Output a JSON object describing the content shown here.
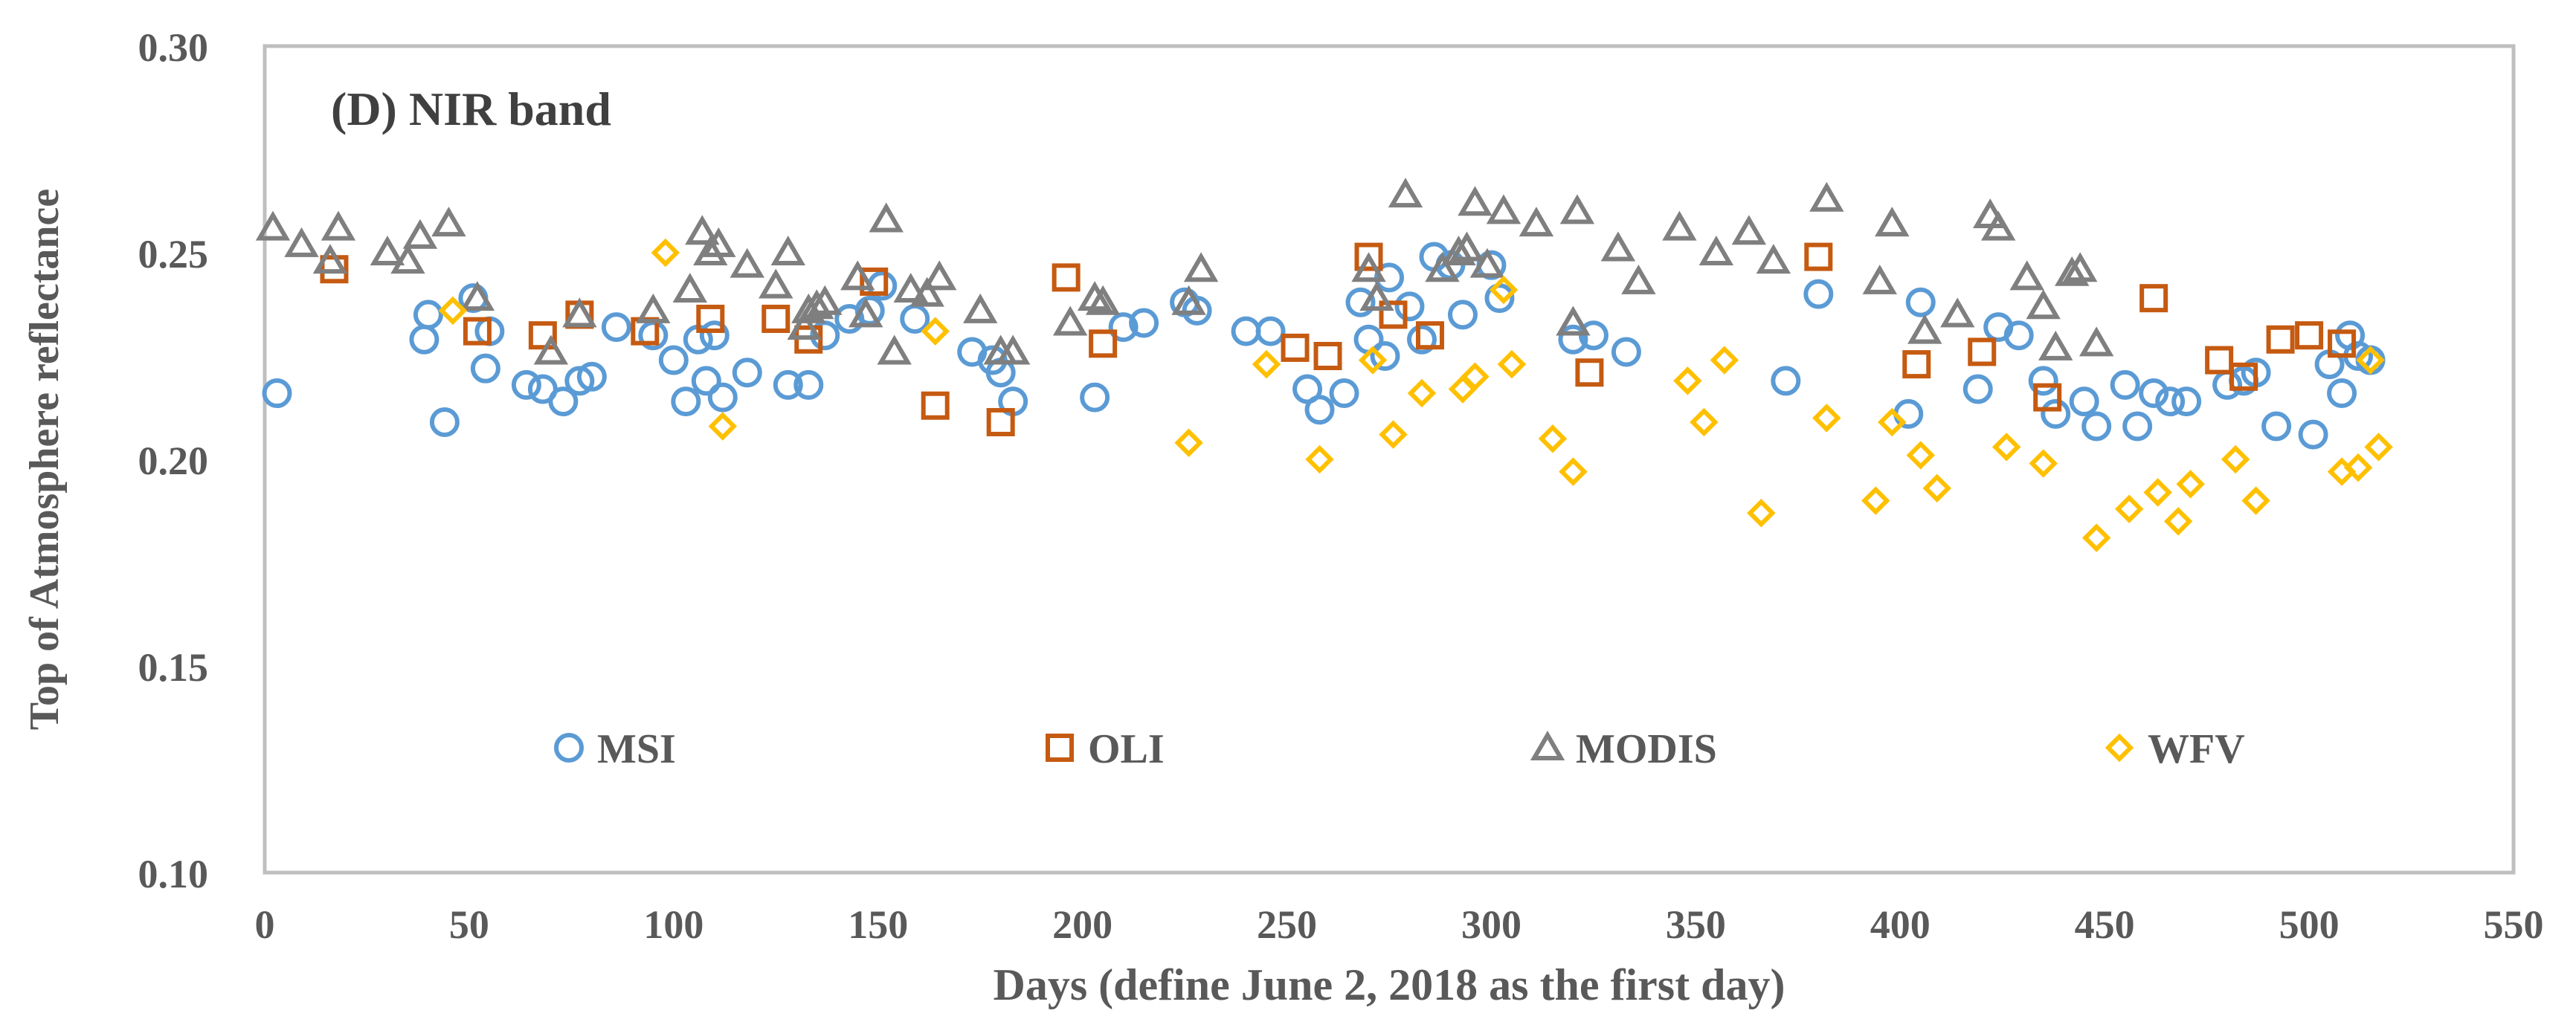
{
  "chart_data": {
    "type": "scatter",
    "title": "(D) NIR band",
    "xlabel": "Days  (define June 2, 2018 as the first day)",
    "ylabel": "Top of Atmosphere reflectance",
    "xlim": [
      0,
      550
    ],
    "ylim": [
      0.1,
      0.3
    ],
    "xticks": [
      0,
      50,
      100,
      150,
      200,
      250,
      300,
      350,
      400,
      450,
      500,
      550
    ],
    "yticks": [
      0.1,
      0.15,
      0.2,
      0.25,
      0.3
    ],
    "xtick_labels": [
      "0",
      "50",
      "100",
      "150",
      "200",
      "250",
      "300",
      "350",
      "400",
      "450",
      "500",
      "550"
    ],
    "ytick_labels": [
      "0.10",
      "0.15",
      "0.20",
      "0.25",
      "0.30"
    ],
    "grid": false,
    "legend_position": "inside-lower",
    "series": [
      {
        "name": "MSI",
        "marker": "circle",
        "color": "#5B9BD5",
        "points": [
          [
            3,
            0.216
          ],
          [
            39,
            0.229
          ],
          [
            40,
            0.235
          ],
          [
            44,
            0.209
          ],
          [
            51,
            0.239
          ],
          [
            54,
            0.222
          ],
          [
            55,
            0.231
          ],
          [
            64,
            0.218
          ],
          [
            68,
            0.217
          ],
          [
            73,
            0.214
          ],
          [
            77,
            0.219
          ],
          [
            80,
            0.22
          ],
          [
            86,
            0.232
          ],
          [
            95,
            0.23
          ],
          [
            100,
            0.224
          ],
          [
            103,
            0.214
          ],
          [
            106,
            0.229
          ],
          [
            108,
            0.219
          ],
          [
            110,
            0.23
          ],
          [
            112,
            0.215
          ],
          [
            118,
            0.221
          ],
          [
            128,
            0.218
          ],
          [
            133,
            0.218
          ],
          [
            137,
            0.23
          ],
          [
            143,
            0.234
          ],
          [
            148,
            0.236
          ],
          [
            151,
            0.242
          ],
          [
            159,
            0.234
          ],
          [
            173,
            0.226
          ],
          [
            178,
            0.224
          ],
          [
            180,
            0.221
          ],
          [
            183,
            0.214
          ],
          [
            203,
            0.215
          ],
          [
            210,
            0.232
          ],
          [
            215,
            0.233
          ],
          [
            225,
            0.238
          ],
          [
            228,
            0.236
          ],
          [
            240,
            0.231
          ],
          [
            246,
            0.231
          ],
          [
            255,
            0.217
          ],
          [
            258,
            0.212
          ],
          [
            264,
            0.216
          ],
          [
            268,
            0.238
          ],
          [
            270,
            0.229
          ],
          [
            274,
            0.225
          ],
          [
            275,
            0.244
          ],
          [
            280,
            0.237
          ],
          [
            283,
            0.229
          ],
          [
            286,
            0.249
          ],
          [
            290,
            0.247
          ],
          [
            293,
            0.235
          ],
          [
            300,
            0.247
          ],
          [
            302,
            0.239
          ],
          [
            320,
            0.229
          ],
          [
            325,
            0.23
          ],
          [
            333,
            0.226
          ],
          [
            372,
            0.219
          ],
          [
            380,
            0.24
          ],
          [
            402,
            0.211
          ],
          [
            405,
            0.238
          ],
          [
            419,
            0.217
          ],
          [
            424,
            0.232
          ],
          [
            429,
            0.23
          ],
          [
            435,
            0.219
          ],
          [
            438,
            0.211
          ],
          [
            445,
            0.214
          ],
          [
            448,
            0.208
          ],
          [
            455,
            0.218
          ],
          [
            458,
            0.208
          ],
          [
            462,
            0.216
          ],
          [
            466,
            0.214
          ],
          [
            470,
            0.214
          ],
          [
            480,
            0.218
          ],
          [
            484,
            0.219
          ],
          [
            487,
            0.221
          ],
          [
            492,
            0.208
          ],
          [
            501,
            0.206
          ],
          [
            505,
            0.223
          ],
          [
            508,
            0.216
          ],
          [
            510,
            0.23
          ],
          [
            512,
            0.225
          ],
          [
            515,
            0.224
          ]
        ]
      },
      {
        "name": "OLI",
        "marker": "square",
        "color": "#C55A11",
        "points": [
          [
            17,
            0.246
          ],
          [
            52,
            0.231
          ],
          [
            68,
            0.23
          ],
          [
            77,
            0.235
          ],
          [
            93,
            0.231
          ],
          [
            109,
            0.234
          ],
          [
            125,
            0.234
          ],
          [
            133,
            0.229
          ],
          [
            149,
            0.243
          ],
          [
            164,
            0.213
          ],
          [
            180,
            0.209
          ],
          [
            196,
            0.244
          ],
          [
            205,
            0.228
          ],
          [
            252,
            0.227
          ],
          [
            260,
            0.225
          ],
          [
            270,
            0.249
          ],
          [
            276,
            0.235
          ],
          [
            285,
            0.23
          ],
          [
            324,
            0.221
          ],
          [
            380,
            0.249
          ],
          [
            404,
            0.223
          ],
          [
            420,
            0.226
          ],
          [
            436,
            0.215
          ],
          [
            462,
            0.239
          ],
          [
            478,
            0.224
          ],
          [
            484,
            0.22
          ],
          [
            493,
            0.229
          ],
          [
            500,
            0.23
          ],
          [
            508,
            0.228
          ]
        ]
      },
      {
        "name": "MODIS",
        "marker": "triangle",
        "color": "#7F7F7F",
        "points": [
          [
            2,
            0.256
          ],
          [
            9,
            0.252
          ],
          [
            16,
            0.248
          ],
          [
            18,
            0.256
          ],
          [
            30,
            0.25
          ],
          [
            35,
            0.248
          ],
          [
            38,
            0.254
          ],
          [
            45,
            0.257
          ],
          [
            52,
            0.239
          ],
          [
            70,
            0.226
          ],
          [
            77,
            0.235
          ],
          [
            95,
            0.236
          ],
          [
            104,
            0.241
          ],
          [
            107,
            0.255
          ],
          [
            109,
            0.25
          ],
          [
            111,
            0.252
          ],
          [
            118,
            0.247
          ],
          [
            125,
            0.242
          ],
          [
            128,
            0.25
          ],
          [
            132,
            0.232
          ],
          [
            133,
            0.236
          ],
          [
            135,
            0.237
          ],
          [
            137,
            0.238
          ],
          [
            145,
            0.244
          ],
          [
            147,
            0.235
          ],
          [
            152,
            0.258
          ],
          [
            154,
            0.226
          ],
          [
            158,
            0.241
          ],
          [
            162,
            0.24
          ],
          [
            165,
            0.244
          ],
          [
            175,
            0.236
          ],
          [
            180,
            0.226
          ],
          [
            183,
            0.226
          ],
          [
            197,
            0.233
          ],
          [
            203,
            0.239
          ],
          [
            205,
            0.238
          ],
          [
            226,
            0.238
          ],
          [
            229,
            0.246
          ],
          [
            270,
            0.246
          ],
          [
            272,
            0.239
          ],
          [
            279,
            0.264
          ],
          [
            288,
            0.246
          ],
          [
            292,
            0.25
          ],
          [
            294,
            0.251
          ],
          [
            296,
            0.262
          ],
          [
            299,
            0.247
          ],
          [
            303,
            0.26
          ],
          [
            311,
            0.257
          ],
          [
            320,
            0.233
          ],
          [
            321,
            0.26
          ],
          [
            331,
            0.251
          ],
          [
            336,
            0.243
          ],
          [
            346,
            0.256
          ],
          [
            355,
            0.25
          ],
          [
            363,
            0.255
          ],
          [
            369,
            0.248
          ],
          [
            382,
            0.263
          ],
          [
            395,
            0.243
          ],
          [
            398,
            0.257
          ],
          [
            406,
            0.231
          ],
          [
            414,
            0.235
          ],
          [
            422,
            0.259
          ],
          [
            424,
            0.256
          ],
          [
            431,
            0.244
          ],
          [
            435,
            0.237
          ],
          [
            438,
            0.227
          ],
          [
            442,
            0.245
          ],
          [
            444,
            0.246
          ],
          [
            448,
            0.228
          ]
        ]
      },
      {
        "name": "WFV",
        "marker": "diamond",
        "color": "#FFC000",
        "points": [
          [
            46,
            0.236
          ],
          [
            98,
            0.25
          ],
          [
            112,
            0.208
          ],
          [
            164,
            0.231
          ],
          [
            226,
            0.204
          ],
          [
            245,
            0.223
          ],
          [
            258,
            0.2
          ],
          [
            271,
            0.224
          ],
          [
            276,
            0.206
          ],
          [
            283,
            0.216
          ],
          [
            293,
            0.217
          ],
          [
            296,
            0.22
          ],
          [
            303,
            0.241
          ],
          [
            305,
            0.223
          ],
          [
            315,
            0.205
          ],
          [
            320,
            0.197
          ],
          [
            348,
            0.219
          ],
          [
            352,
            0.209
          ],
          [
            357,
            0.224
          ],
          [
            366,
            0.187
          ],
          [
            382,
            0.21
          ],
          [
            394,
            0.19
          ],
          [
            398,
            0.209
          ],
          [
            405,
            0.201
          ],
          [
            409,
            0.193
          ],
          [
            426,
            0.203
          ],
          [
            435,
            0.199
          ],
          [
            448,
            0.181
          ],
          [
            456,
            0.188
          ],
          [
            463,
            0.192
          ],
          [
            468,
            0.185
          ],
          [
            471,
            0.194
          ],
          [
            482,
            0.2
          ],
          [
            487,
            0.19
          ],
          [
            508,
            0.197
          ],
          [
            512,
            0.198
          ],
          [
            515,
            0.224
          ],
          [
            517,
            0.203
          ]
        ]
      }
    ]
  }
}
